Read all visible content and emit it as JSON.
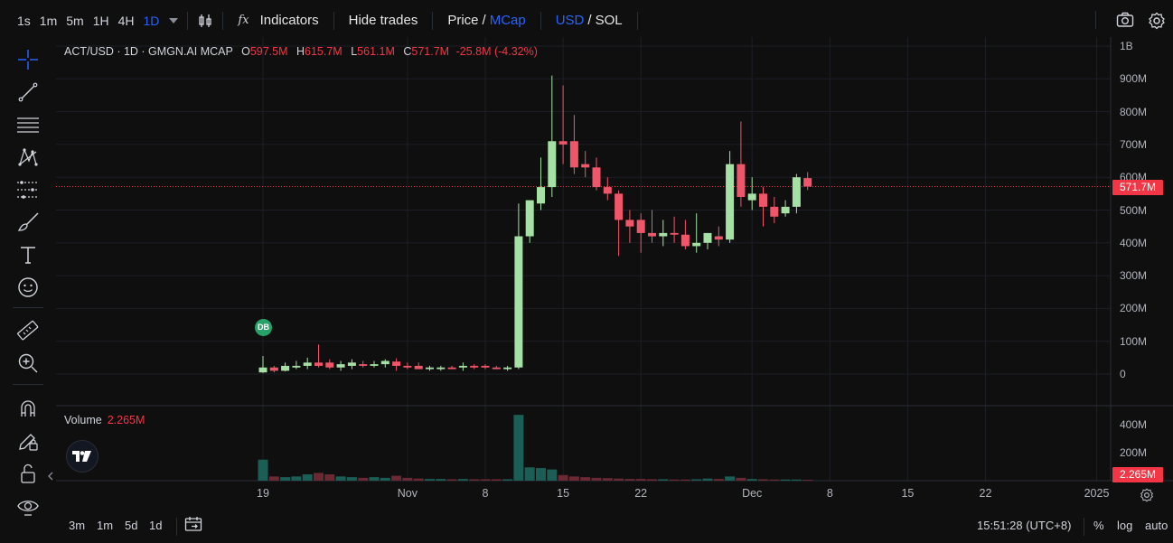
{
  "toolbar": {
    "timeframes": [
      {
        "label": "1s",
        "active": false
      },
      {
        "label": "1m",
        "active": false
      },
      {
        "label": "5m",
        "active": false
      },
      {
        "label": "1H",
        "active": false
      },
      {
        "label": "4H",
        "active": false
      },
      {
        "label": "1D",
        "active": true
      }
    ],
    "indicators_label": "Indicators",
    "hide_trades_label": "Hide trades",
    "price_label": "Price",
    "slash": "/",
    "mcap_label": "MCap",
    "usd_label": "USD",
    "sol_label": "SOL",
    "fx_label": "fx"
  },
  "legend": {
    "symbol": "ACT/USD · 1D · GMGN.AI MCAP",
    "o_key": "O",
    "o_val": "597.5M",
    "h_key": "H",
    "h_val": "615.7M",
    "l_key": "L",
    "l_val": "561.1M",
    "c_key": "C",
    "c_val": "571.7M",
    "change": "-25.8M (-4.32%)"
  },
  "volume": {
    "label": "Volume",
    "value": "2.265M"
  },
  "price_tag": "571.7M",
  "volume_tag": "2.265M",
  "marker_label": "DB",
  "y_axis": [
    "1B",
    "900M",
    "800M",
    "700M",
    "600M",
    "500M",
    "400M",
    "300M",
    "200M",
    "100M",
    "0"
  ],
  "vol_axis": [
    "400M",
    "200M"
  ],
  "x_axis": [
    "19",
    "Nov",
    "8",
    "15",
    "22",
    "Dec",
    "8",
    "15",
    "22",
    "2025"
  ],
  "bottom": {
    "ranges": [
      "3m",
      "1m",
      "5d",
      "1d"
    ],
    "time": "15:51:28 (UTC+8)",
    "percent": "%",
    "log": "log",
    "auto": "auto"
  },
  "colors": {
    "up": "#a5e1a5",
    "down": "#f0566a",
    "vol_up": "#1b5e55",
    "vol_down": "#6b2a33",
    "accent": "#2962ff"
  },
  "chart_data": {
    "type": "candlestick",
    "title": "ACT/USD · 1D · GMGN.AI MCAP",
    "ylim": [
      0,
      1000
    ],
    "unit": "M",
    "candles": [
      {
        "o": 5,
        "h": 55,
        "l": 3,
        "c": 20
      },
      {
        "o": 20,
        "h": 25,
        "l": 5,
        "c": 10
      },
      {
        "o": 10,
        "h": 35,
        "l": 8,
        "c": 25
      },
      {
        "o": 20,
        "h": 40,
        "l": 15,
        "c": 25
      },
      {
        "o": 25,
        "h": 50,
        "l": 15,
        "c": 35
      },
      {
        "o": 35,
        "h": 90,
        "l": 20,
        "c": 25
      },
      {
        "o": 35,
        "h": 45,
        "l": 15,
        "c": 20
      },
      {
        "o": 20,
        "h": 40,
        "l": 10,
        "c": 30
      },
      {
        "o": 25,
        "h": 45,
        "l": 15,
        "c": 35
      },
      {
        "o": 30,
        "h": 40,
        "l": 20,
        "c": 25
      },
      {
        "o": 25,
        "h": 40,
        "l": 20,
        "c": 30
      },
      {
        "o": 30,
        "h": 45,
        "l": 20,
        "c": 40
      },
      {
        "o": 38,
        "h": 48,
        "l": 10,
        "c": 25
      },
      {
        "o": 25,
        "h": 35,
        "l": 15,
        "c": 20
      },
      {
        "o": 25,
        "h": 35,
        "l": 15,
        "c": 15
      },
      {
        "o": 15,
        "h": 25,
        "l": 10,
        "c": 20
      },
      {
        "o": 15,
        "h": 25,
        "l": 10,
        "c": 20
      },
      {
        "o": 20,
        "h": 25,
        "l": 15,
        "c": 15
      },
      {
        "o": 20,
        "h": 35,
        "l": 10,
        "c": 25
      },
      {
        "o": 25,
        "h": 30,
        "l": 15,
        "c": 20
      },
      {
        "o": 25,
        "h": 30,
        "l": 15,
        "c": 20
      },
      {
        "o": 20,
        "h": 25,
        "l": 15,
        "c": 15
      },
      {
        "o": 15,
        "h": 25,
        "l": 10,
        "c": 20
      },
      {
        "o": 20,
        "h": 520,
        "l": 15,
        "c": 420
      },
      {
        "o": 420,
        "h": 520,
        "l": 400,
        "c": 530
      },
      {
        "o": 520,
        "h": 660,
        "l": 500,
        "c": 570
      },
      {
        "o": 570,
        "h": 910,
        "l": 540,
        "c": 710
      },
      {
        "o": 710,
        "h": 880,
        "l": 640,
        "c": 700
      },
      {
        "o": 710,
        "h": 790,
        "l": 610,
        "c": 630
      },
      {
        "o": 640,
        "h": 680,
        "l": 600,
        "c": 630
      },
      {
        "o": 630,
        "h": 660,
        "l": 560,
        "c": 570
      },
      {
        "o": 570,
        "h": 600,
        "l": 530,
        "c": 550
      },
      {
        "o": 550,
        "h": 560,
        "l": 360,
        "c": 470
      },
      {
        "o": 470,
        "h": 500,
        "l": 400,
        "c": 450
      },
      {
        "o": 470,
        "h": 490,
        "l": 370,
        "c": 430
      },
      {
        "o": 430,
        "h": 500,
        "l": 400,
        "c": 420
      },
      {
        "o": 420,
        "h": 470,
        "l": 390,
        "c": 430
      },
      {
        "o": 430,
        "h": 480,
        "l": 400,
        "c": 425
      },
      {
        "o": 425,
        "h": 470,
        "l": 380,
        "c": 390
      },
      {
        "o": 390,
        "h": 490,
        "l": 370,
        "c": 400
      },
      {
        "o": 400,
        "h": 430,
        "l": 380,
        "c": 430
      },
      {
        "o": 420,
        "h": 450,
        "l": 390,
        "c": 410
      },
      {
        "o": 410,
        "h": 680,
        "l": 400,
        "c": 640
      },
      {
        "o": 640,
        "h": 770,
        "l": 510,
        "c": 540
      },
      {
        "o": 530,
        "h": 600,
        "l": 500,
        "c": 550
      },
      {
        "o": 550,
        "h": 570,
        "l": 450,
        "c": 510
      },
      {
        "o": 510,
        "h": 540,
        "l": 460,
        "c": 480
      },
      {
        "o": 490,
        "h": 530,
        "l": 480,
        "c": 510
      },
      {
        "o": 510,
        "h": 610,
        "l": 490,
        "c": 600
      },
      {
        "o": 597.5,
        "h": 615.7,
        "l": 561.1,
        "c": 571.7
      }
    ],
    "volume_unit": "M",
    "volumes": [
      150,
      30,
      25,
      30,
      45,
      55,
      45,
      30,
      25,
      20,
      25,
      20,
      35,
      20,
      15,
      12,
      12,
      10,
      12,
      10,
      10,
      10,
      10,
      470,
      95,
      90,
      80,
      40,
      30,
      25,
      20,
      18,
      15,
      12,
      12,
      10,
      10,
      8,
      8,
      10,
      15,
      12,
      30,
      20,
      12,
      10,
      8,
      8,
      8,
      2.265
    ]
  }
}
